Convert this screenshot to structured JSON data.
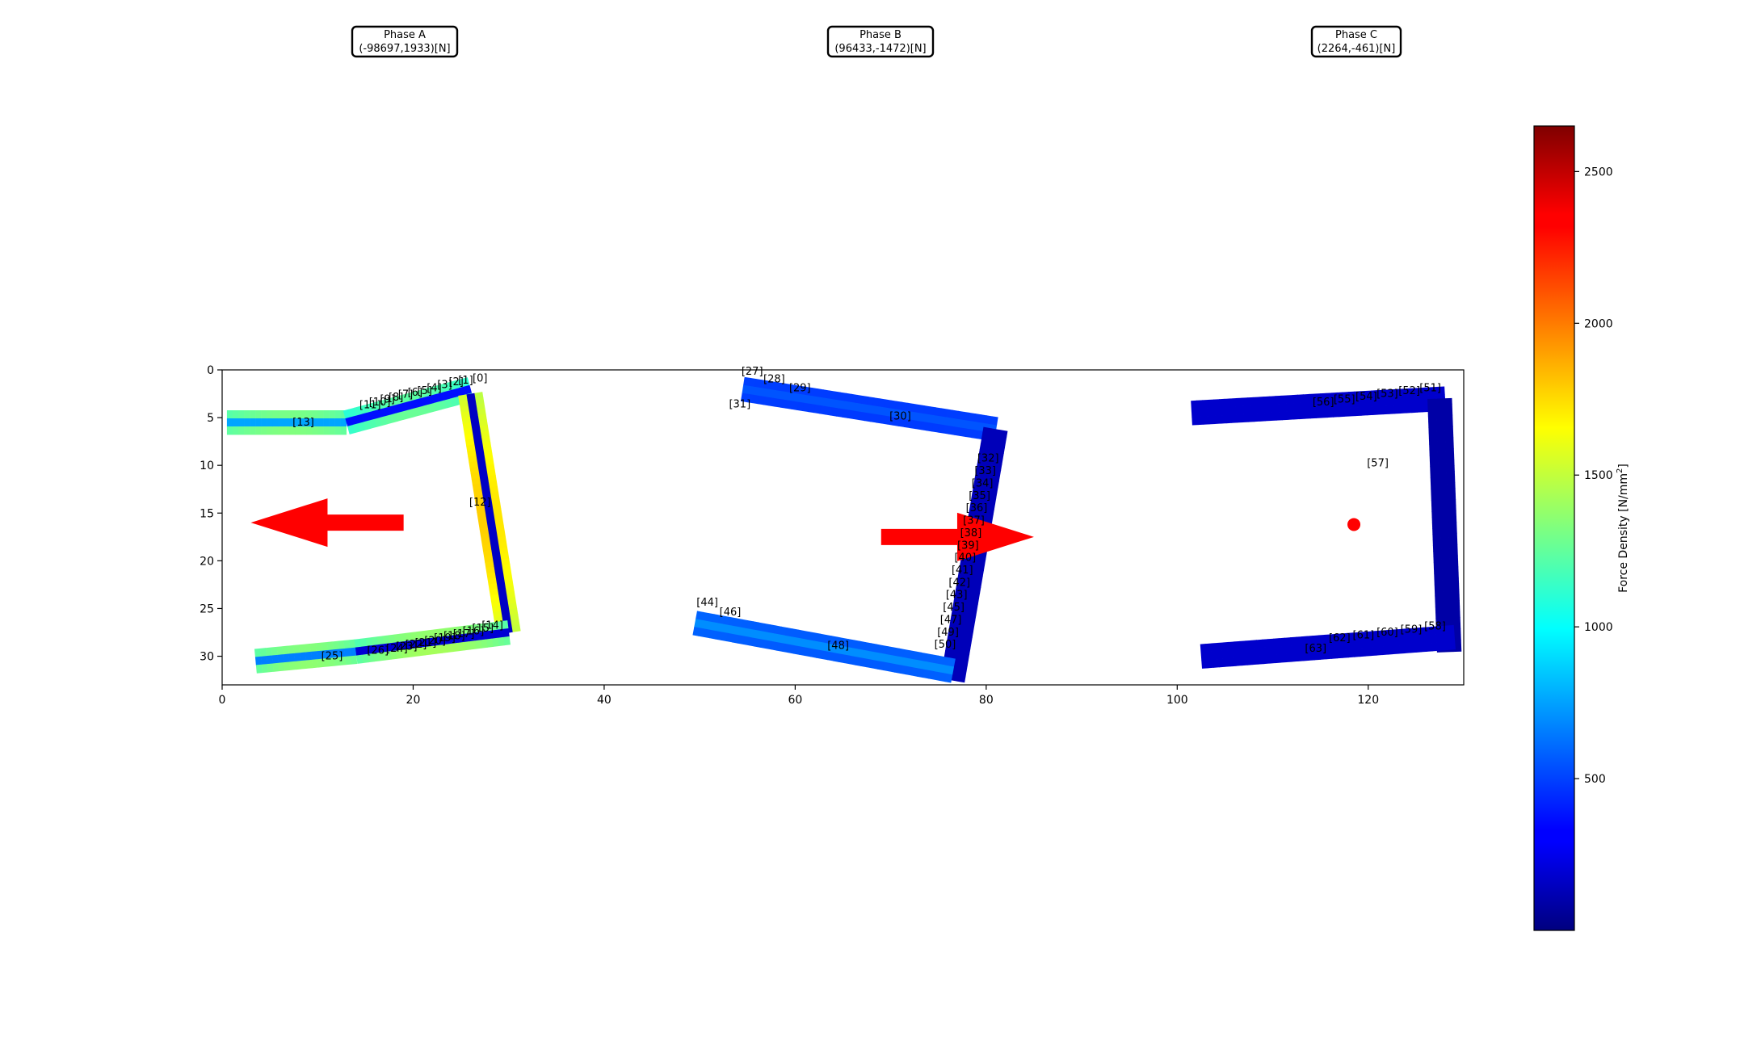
{
  "chart_data": {
    "type": "heatmap",
    "title": "",
    "xlabel": "",
    "ylabel": "",
    "xlim": [
      0,
      130
    ],
    "ylim": [
      33,
      0
    ],
    "x_ticks": [
      0,
      20,
      40,
      60,
      80,
      100,
      120
    ],
    "y_ticks": [
      0,
      5,
      10,
      15,
      20,
      25,
      30
    ],
    "grid": false,
    "phase_labels": [
      {
        "name": "Phase A",
        "value": "(-98697,1933)[N]"
      },
      {
        "name": "Phase B",
        "value": "(96433,-1472)[N]"
      },
      {
        "name": "Phase C",
        "value": "(2264,-461)[N]"
      }
    ],
    "colorbar": {
      "label": "Force Density [N/mm²]",
      "label_main": "Force Density [N/mm",
      "label_sup": "2",
      "label_end": "]",
      "min": 0,
      "max": 2650,
      "ticks": [
        500,
        1000,
        1500,
        2000,
        2500
      ],
      "colormap": "jet"
    },
    "force_arrows": [
      {
        "phase": "Phase A",
        "direction": "left",
        "tail": [
          19,
          16
        ],
        "head": [
          3,
          16
        ]
      },
      {
        "phase": "Phase B",
        "direction": "right",
        "tail": [
          69,
          17.5
        ],
        "head": [
          85,
          17.5
        ]
      },
      {
        "phase": "Phase C",
        "direction": "point",
        "at": [
          118.5,
          16.2
        ]
      }
    ],
    "arrow_color": "#ff0000",
    "series": [
      {
        "name": "Phase A",
        "segments": [
          {
            "from": [
              0.5,
              5.5
            ],
            "to": [
              13,
              5.5
            ],
            "v_outer": 1600,
            "v_inner": 750
          },
          {
            "from": [
              13,
              5.5
            ],
            "to": [
              26,
              2.0
            ],
            "v_outer": 1700,
            "v_inner": 350
          },
          {
            "from": [
              26,
              2.5
            ],
            "to": [
              30,
              27.5
            ],
            "v_outer": 2550,
            "v_inner": 150
          },
          {
            "from": [
              3.5,
              30.5
            ],
            "to": [
              14,
              29.5
            ],
            "v_outer": 1700,
            "v_inner": 650
          },
          {
            "from": [
              14,
              29.5
            ],
            "to": [
              30,
              27.5
            ],
            "v_outer": 2000,
            "v_inner": 200
          }
        ]
      },
      {
        "name": "Phase B",
        "segments": [
          {
            "from": [
              54.5,
              2.0
            ],
            "to": [
              81,
              6.2
            ],
            "v_outer": 450,
            "v_inner": 550
          },
          {
            "from": [
              81,
              6.2
            ],
            "to": [
              76.5,
              32.5
            ],
            "v_outer": 150,
            "v_inner": 150
          },
          {
            "from": [
              49.5,
              26.5
            ],
            "to": [
              76.5,
              31.5
            ],
            "v_outer": 500,
            "v_inner": 700
          }
        ]
      },
      {
        "name": "Phase C",
        "segments": [
          {
            "from": [
              101.5,
              4.5
            ],
            "to": [
              128,
              3.0
            ],
            "v_outer": 200,
            "v_inner": 200
          },
          {
            "from": [
              127.5,
              3.0
            ],
            "to": [
              128.5,
              29.5
            ],
            "v_outer": 100,
            "v_inner": 100
          },
          {
            "from": [
              102.5,
              30.0
            ],
            "to": [
              129,
              28.0
            ],
            "v_outer": 200,
            "v_inner": 200
          }
        ]
      }
    ],
    "point_labels": [
      {
        "text": "[0]",
        "x": 27,
        "y": 0.8
      },
      {
        "text": "[1]",
        "x": 25.5,
        "y": 1.0
      },
      {
        "text": "[2]",
        "x": 24.5,
        "y": 1.2
      },
      {
        "text": "[3]",
        "x": 23.3,
        "y": 1.5
      },
      {
        "text": "[4]",
        "x": 22.2,
        "y": 1.8
      },
      {
        "text": "[5]",
        "x": 21.2,
        "y": 2.1
      },
      {
        "text": "[6]",
        "x": 20.2,
        "y": 2.3
      },
      {
        "text": "[7]",
        "x": 19.2,
        "y": 2.5
      },
      {
        "text": "[8]",
        "x": 18.2,
        "y": 2.8
      },
      {
        "text": "[9]",
        "x": 17.3,
        "y": 3.0
      },
      {
        "text": "[10]",
        "x": 16.5,
        "y": 3.3
      },
      {
        "text": "[11]",
        "x": 15.5,
        "y": 3.6
      },
      {
        "text": "[12]",
        "x": 27,
        "y": 13.8
      },
      {
        "text": "[13]",
        "x": 8.5,
        "y": 5.4
      },
      {
        "text": "[14]",
        "x": 28.3,
        "y": 26.7
      },
      {
        "text": "[15]",
        "x": 27.3,
        "y": 27.0
      },
      {
        "text": "[16]",
        "x": 26.3,
        "y": 27.3
      },
      {
        "text": "[17]",
        "x": 25.3,
        "y": 27.6
      },
      {
        "text": "[18]",
        "x": 24.3,
        "y": 27.8
      },
      {
        "text": "[19]",
        "x": 23.3,
        "y": 28.0
      },
      {
        "text": "[20]",
        "x": 22.3,
        "y": 28.3
      },
      {
        "text": "[21]",
        "x": 21.3,
        "y": 28.5
      },
      {
        "text": "[22]",
        "x": 20.3,
        "y": 28.7
      },
      {
        "text": "[23]",
        "x": 19.3,
        "y": 28.9
      },
      {
        "text": "[24]",
        "x": 18.3,
        "y": 29.1
      },
      {
        "text": "[25]",
        "x": 11.5,
        "y": 29.9
      },
      {
        "text": "[26]",
        "x": 16.3,
        "y": 29.3
      },
      {
        "text": "[27]",
        "x": 55.5,
        "y": 0.1
      },
      {
        "text": "[28]",
        "x": 57.8,
        "y": 0.9
      },
      {
        "text": "[29]",
        "x": 60.5,
        "y": 1.8
      },
      {
        "text": "[30]",
        "x": 71,
        "y": 4.8
      },
      {
        "text": "[31]",
        "x": 54.2,
        "y": 3.5
      },
      {
        "text": "[32]",
        "x": 80.2,
        "y": 9.2
      },
      {
        "text": "[33]",
        "x": 79.9,
        "y": 10.5
      },
      {
        "text": "[34]",
        "x": 79.6,
        "y": 11.8
      },
      {
        "text": "[35]",
        "x": 79.3,
        "y": 13.1
      },
      {
        "text": "[36]",
        "x": 79.0,
        "y": 14.4
      },
      {
        "text": "[37]",
        "x": 78.7,
        "y": 15.7
      },
      {
        "text": "[38]",
        "x": 78.4,
        "y": 17.0
      },
      {
        "text": "[39]",
        "x": 78.1,
        "y": 18.3
      },
      {
        "text": "[40]",
        "x": 77.8,
        "y": 19.6
      },
      {
        "text": "[41]",
        "x": 77.5,
        "y": 20.9
      },
      {
        "text": "[42]",
        "x": 77.2,
        "y": 22.2
      },
      {
        "text": "[43]",
        "x": 76.9,
        "y": 23.5
      },
      {
        "text": "[44]",
        "x": 50.8,
        "y": 24.3
      },
      {
        "text": "[45]",
        "x": 76.6,
        "y": 24.8
      },
      {
        "text": "[46]",
        "x": 53.2,
        "y": 25.3
      },
      {
        "text": "[47]",
        "x": 76.3,
        "y": 26.1
      },
      {
        "text": "[48]",
        "x": 64.5,
        "y": 28.8
      },
      {
        "text": "[49]",
        "x": 76.0,
        "y": 27.4
      },
      {
        "text": "[50]",
        "x": 75.7,
        "y": 28.7
      },
      {
        "text": "[51]",
        "x": 126.5,
        "y": 1.8
      },
      {
        "text": "[52]",
        "x": 124.3,
        "y": 2.1
      },
      {
        "text": "[53]",
        "x": 122,
        "y": 2.4
      },
      {
        "text": "[54]",
        "x": 119.8,
        "y": 2.7
      },
      {
        "text": "[55]",
        "x": 117.5,
        "y": 3.0
      },
      {
        "text": "[56]",
        "x": 115.3,
        "y": 3.3
      },
      {
        "text": "[57]",
        "x": 121,
        "y": 9.7
      },
      {
        "text": "[58]",
        "x": 127,
        "y": 26.8
      },
      {
        "text": "[59]",
        "x": 124.5,
        "y": 27.1
      },
      {
        "text": "[60]",
        "x": 122,
        "y": 27.4
      },
      {
        "text": "[61]",
        "x": 119.5,
        "y": 27.7
      },
      {
        "text": "[62]",
        "x": 117,
        "y": 28.0
      },
      {
        "text": "[63]",
        "x": 114.5,
        "y": 29.1
      }
    ]
  }
}
